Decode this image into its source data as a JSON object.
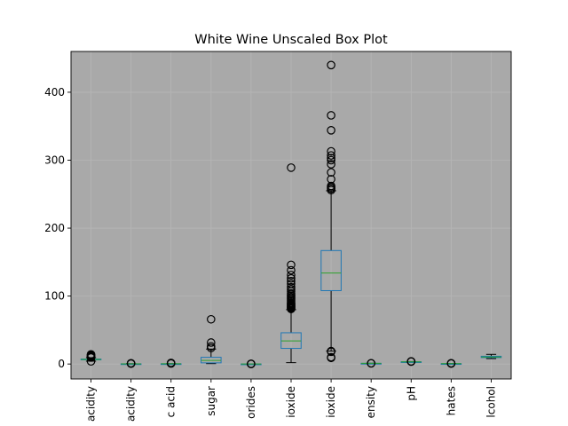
{
  "chart_data": {
    "type": "box",
    "title": "White Wine Unscaled Box Plot",
    "xlabel": "",
    "ylabel": "",
    "ylim": [
      -22,
      460
    ],
    "yticks": [
      0,
      100,
      200,
      300,
      400
    ],
    "grid": true,
    "plot_background": "#a9a9a9",
    "box_color": "#1f77b4",
    "median_color": "#2ca02c",
    "categories": [
      "acidity",
      "acidity",
      "c acid",
      "sugar",
      "orides",
      "ioxide",
      "ioxide",
      "ensity",
      "pH",
      "hates",
      "lcohol"
    ],
    "boxes": [
      {
        "whislo": 4.2,
        "q1": 6.3,
        "med": 6.8,
        "q3": 7.3,
        "whishi": 9.3,
        "fliers": [
          3.8,
          9.6,
          10.0,
          10.4,
          10.7,
          11.0,
          11.8,
          12.5,
          13.5,
          14.2
        ]
      },
      {
        "whislo": 0.08,
        "q1": 0.21,
        "med": 0.26,
        "q3": 0.32,
        "whishi": 0.49,
        "fliers": [
          0.6,
          0.8,
          1.1
        ]
      },
      {
        "whislo": 0.0,
        "q1": 0.27,
        "med": 0.32,
        "q3": 0.39,
        "whishi": 0.56,
        "fliers": [
          0.8,
          1.2,
          1.66
        ]
      },
      {
        "whislo": 0.6,
        "q1": 1.7,
        "med": 5.2,
        "q3": 9.9,
        "whishi": 22.0,
        "fliers": [
          23.5,
          26.0,
          31.6,
          65.8
        ]
      },
      {
        "whislo": 0.009,
        "q1": 0.036,
        "med": 0.043,
        "q3": 0.05,
        "whishi": 0.07,
        "fliers": [
          0.1,
          0.2,
          0.346
        ]
      },
      {
        "whislo": 2,
        "q1": 23,
        "med": 34,
        "q3": 46,
        "whishi": 80,
        "fliers": [
          81,
          82,
          83,
          84,
          85,
          86,
          87,
          88,
          89,
          90,
          92,
          94,
          96,
          98,
          100,
          102,
          104,
          107,
          110,
          113,
          118,
          122,
          126,
          131,
          138,
          146,
          289
        ]
      },
      {
        "whislo": 19,
        "q1": 108,
        "med": 134,
        "q3": 167,
        "whishi": 255,
        "fliers": [
          9,
          10,
          18,
          19,
          256,
          258,
          260,
          262,
          272,
          282,
          294,
          300,
          303,
          307,
          313,
          344,
          366,
          440
        ]
      },
      {
        "whislo": 0.987,
        "q1": 0.992,
        "med": 0.994,
        "q3": 0.996,
        "whishi": 1.002,
        "fliers": [
          1.01,
          1.039
        ]
      },
      {
        "whislo": 2.72,
        "q1": 3.09,
        "med": 3.18,
        "q3": 3.28,
        "whishi": 3.57,
        "fliers": [
          3.6,
          3.7,
          3.82
        ]
      },
      {
        "whislo": 0.22,
        "q1": 0.41,
        "med": 0.47,
        "q3": 0.55,
        "whishi": 0.76,
        "fliers": [
          0.8,
          0.9,
          1.08
        ]
      },
      {
        "whislo": 8.0,
        "q1": 9.5,
        "med": 10.4,
        "q3": 11.4,
        "whishi": 14.2,
        "fliers": []
      }
    ]
  }
}
